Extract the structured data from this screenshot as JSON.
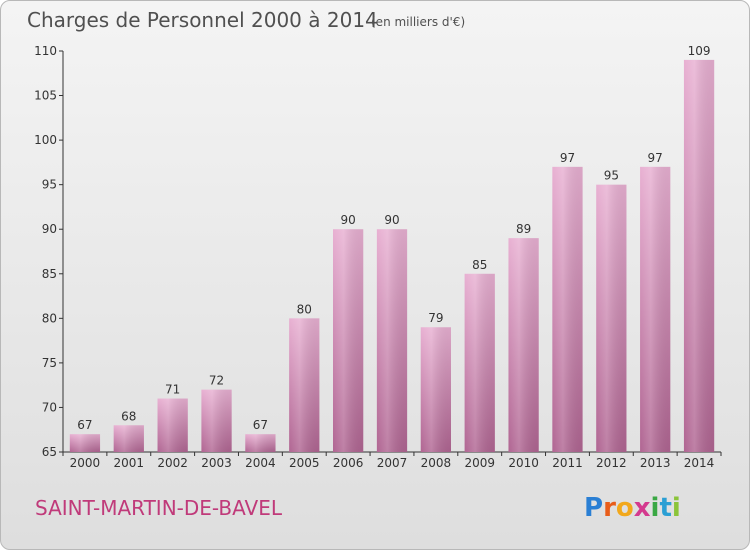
{
  "colors": {
    "bar_light": "#e8b0d2",
    "bar_dark": "#b06592",
    "bar_mid": "#d795be",
    "commune": "#c03a7a"
  },
  "commune": "SAINT-MARTIN-DE-BAVEL",
  "logo": {
    "letters": [
      {
        "ch": "P",
        "color": "#2a7fd4"
      },
      {
        "ch": "r",
        "color": "#e85d1a"
      },
      {
        "ch": "o",
        "color": "#f2a81c"
      },
      {
        "ch": "x",
        "color": "#d43a8e"
      },
      {
        "ch": "i",
        "color": "#3aa844"
      },
      {
        "ch": "t",
        "color": "#2a9fd4"
      },
      {
        "ch": "i",
        "color": "#8bc43a"
      }
    ]
  },
  "chart_data": {
    "type": "bar",
    "title": "Charges de Personnel 2000 à 2014",
    "subtitle": "(en milliers d'€)",
    "xlabel": "",
    "ylabel": "",
    "categories": [
      "2000",
      "2001",
      "2002",
      "2003",
      "2004",
      "2005",
      "2006",
      "2007",
      "2008",
      "2009",
      "2010",
      "2011",
      "2012",
      "2013",
      "2014"
    ],
    "values": [
      67,
      68,
      71,
      72,
      67,
      80,
      90,
      90,
      79,
      85,
      89,
      97,
      95,
      97,
      109
    ],
    "ylim": [
      65,
      110
    ],
    "yticks": [
      65,
      70,
      75,
      80,
      85,
      90,
      95,
      100,
      105,
      110
    ],
    "grid": false,
    "legend": "none"
  }
}
